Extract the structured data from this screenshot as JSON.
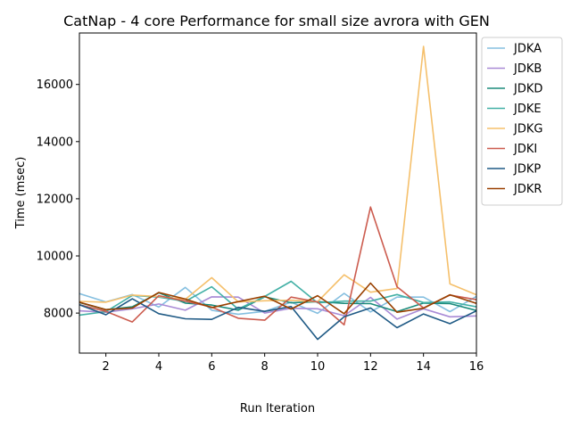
{
  "chart_data": {
    "type": "line",
    "title": "CatNap - 4 core Performance for small size avrora with GEN",
    "xlabel": "Run Iteration",
    "ylabel": "Time (msec)",
    "xlim": [
      1,
      16
    ],
    "ylim": [
      6600,
      17800
    ],
    "x_ticks": [
      2,
      4,
      6,
      8,
      10,
      12,
      14,
      16
    ],
    "y_ticks": [
      8000,
      10000,
      12000,
      14000,
      16000
    ],
    "grid": false,
    "legend_position": "outside-right-top",
    "x": [
      1,
      2,
      3,
      4,
      5,
      6,
      7,
      8,
      9,
      10,
      11,
      12,
      13,
      14,
      15,
      16
    ],
    "series": [
      {
        "name": "JDKA",
        "color": "#85bfe0",
        "values": [
          8680,
          8390,
          8650,
          8210,
          8900,
          8100,
          7960,
          8060,
          8380,
          7990,
          8690,
          8040,
          8560,
          8560,
          8050,
          8580
        ]
      },
      {
        "name": "JDKB",
        "color": "#a98bd6",
        "values": [
          8080,
          8030,
          8150,
          8320,
          8100,
          8570,
          8560,
          8000,
          8170,
          8150,
          7910,
          8550,
          7790,
          8150,
          7870,
          7900
        ]
      },
      {
        "name": "JDKD",
        "color": "#1b8b7c",
        "values": [
          8370,
          8120,
          8220,
          8710,
          8350,
          8280,
          8100,
          8570,
          8360,
          8400,
          8340,
          8330,
          8050,
          8350,
          8330,
          8090
        ]
      },
      {
        "name": "JDKE",
        "color": "#43b0a6",
        "values": [
          7930,
          8050,
          8620,
          8560,
          8410,
          8920,
          8140,
          8580,
          9110,
          8360,
          8420,
          8420,
          8650,
          8370,
          8390,
          8220
        ]
      },
      {
        "name": "JDKG",
        "color": "#f5c06c",
        "values": [
          8410,
          8380,
          8630,
          8580,
          8480,
          9240,
          8390,
          8430,
          8450,
          8400,
          9340,
          8730,
          8860,
          17330,
          9020,
          8640
        ]
      },
      {
        "name": "JDKI",
        "color": "#cc5c4f",
        "values": [
          8290,
          8060,
          7690,
          8610,
          8420,
          8210,
          7820,
          7750,
          8560,
          8390,
          7590,
          11710,
          8920,
          8180,
          8630,
          8470
        ]
      },
      {
        "name": "JDKP",
        "color": "#1f5a85",
        "values": [
          8290,
          7940,
          8500,
          7980,
          7800,
          7780,
          8200,
          8060,
          8230,
          7080,
          7870,
          8180,
          7490,
          7970,
          7630,
          8080
        ]
      },
      {
        "name": "JDKR",
        "color": "#994000",
        "values": [
          8380,
          8120,
          8180,
          8720,
          8490,
          8190,
          8400,
          8590,
          8140,
          8610,
          7980,
          9050,
          8030,
          8170,
          8640,
          8340
        ]
      }
    ]
  }
}
